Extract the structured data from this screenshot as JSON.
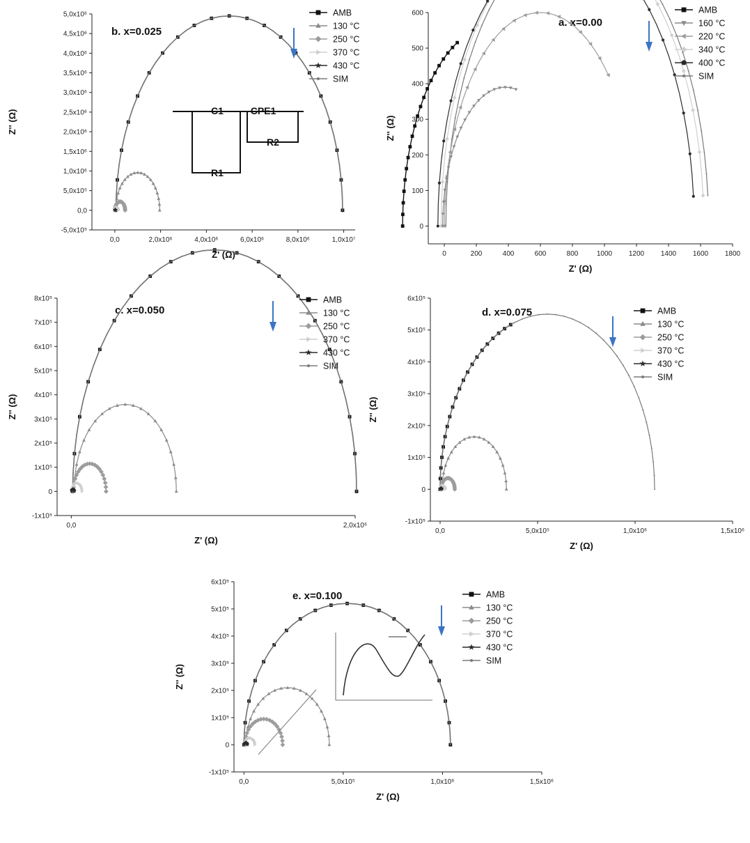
{
  "colors": {
    "arrow": "#3a74c4",
    "axis": "#222222"
  },
  "chart_data": [
    {
      "panel": "b",
      "type": "scatter",
      "title": "b. x=0.025",
      "xlabel": "Z' (Ω)",
      "ylabel": "Z'' (Ω)",
      "xlim": [
        -1000000,
        10500000
      ],
      "ylim": [
        -500000,
        5000000
      ],
      "x_ticks": [
        {
          "v": 0,
          "t": "0,0"
        },
        {
          "v": 2000000,
          "t": "2,0x10⁶"
        },
        {
          "v": 4000000,
          "t": "4,0x10⁶"
        },
        {
          "v": 6000000,
          "t": "6,0x10⁶"
        },
        {
          "v": 8000000,
          "t": "8,0x10⁶"
        },
        {
          "v": 10000000,
          "t": "1,0x10⁷"
        }
      ],
      "y_ticks": [
        {
          "v": -500000,
          "t": "-5,0x10⁵"
        },
        {
          "v": 0,
          "t": "0,0"
        },
        {
          "v": 500000,
          "t": "5,0x10⁵"
        },
        {
          "v": 1000000,
          "t": "1,0x10⁶"
        },
        {
          "v": 1500000,
          "t": "1,5x10⁶"
        },
        {
          "v": 2000000,
          "t": "2,0x10⁶"
        },
        {
          "v": 2500000,
          "t": "2,5x10⁶"
        },
        {
          "v": 3000000,
          "t": "3,0x10⁶"
        },
        {
          "v": 3500000,
          "t": "3,5x10⁶"
        },
        {
          "v": 4000000,
          "t": "4,0x10⁶"
        },
        {
          "v": 4500000,
          "t": "4,5x10⁶"
        },
        {
          "v": 5000000,
          "t": "5,0x10⁶"
        }
      ],
      "legend": [
        "AMB",
        "130 °C",
        "250 °C",
        "370 °C",
        "430 °C",
        "SIM"
      ],
      "series": [
        {
          "name": "AMB",
          "center": 5000000,
          "radius": 4950000,
          "end_angle": 180,
          "marker": "square"
        },
        {
          "name": "130 °C",
          "center": 1000000,
          "radius": 960000,
          "end_angle": 180,
          "marker": "triangle"
        },
        {
          "name": "250 °C",
          "center": 230000,
          "radius": 220000,
          "end_angle": 180,
          "marker": "diamond"
        },
        {
          "name": "370 °C",
          "center": 80000,
          "radius": 75000,
          "end_angle": 180,
          "marker": "tri-right"
        },
        {
          "name": "430 °C",
          "center": 20000,
          "radius": 18000,
          "end_angle": 180,
          "marker": "star"
        },
        {
          "name": "SIM",
          "center": 5000000,
          "radius": 4950000,
          "end_angle": 180,
          "marker": "dot"
        }
      ],
      "circuit": {
        "c1": "C1",
        "r1": "R1",
        "cpe1": "CPE1",
        "r2": "R2"
      }
    },
    {
      "panel": "a",
      "type": "scatter",
      "title": "a. x=0.00",
      "xlabel": "Z' (Ω)",
      "ylabel": "Z'' (Ω)",
      "xlim": [
        -100,
        1800
      ],
      "ylim": [
        -50,
        600
      ],
      "x_ticks": [
        {
          "v": 0,
          "t": "0"
        },
        {
          "v": 200,
          "t": "200"
        },
        {
          "v": 400,
          "t": "400"
        },
        {
          "v": 600,
          "t": "600"
        },
        {
          "v": 800,
          "t": "800"
        },
        {
          "v": 1000,
          "t": "1000"
        },
        {
          "v": 1200,
          "t": "1200"
        },
        {
          "v": 1400,
          "t": "1400"
        },
        {
          "v": 1600,
          "t": "1600"
        },
        {
          "v": 1800,
          "t": "1800"
        }
      ],
      "y_ticks": [
        {
          "v": 0,
          "t": "0"
        },
        {
          "v": 100,
          "t": "100"
        },
        {
          "v": 200,
          "t": "200"
        },
        {
          "v": 300,
          "t": "300"
        },
        {
          "v": 400,
          "t": "400"
        },
        {
          "v": 500,
          "t": "500"
        },
        {
          "v": 600,
          "t": "600"
        }
      ],
      "legend": [
        "AMB",
        "160 °C",
        "220 °C",
        "340 °C",
        "400 °C",
        "SIM"
      ],
      "series": [
        {
          "name": "AMB",
          "center": 300,
          "radius": 560,
          "end_angle": 67,
          "marker": "square"
        },
        {
          "name": "160 °C",
          "center": 380,
          "radius": 390,
          "end_angle": 100,
          "marker": "tri-down"
        },
        {
          "name": "220 °C",
          "center": 600,
          "radius": 600,
          "end_angle": 135,
          "marker": "tri-left"
        },
        {
          "name": "340 °C",
          "center": 800,
          "radius": 820,
          "end_angle": 174,
          "marker": "diamond"
        },
        {
          "name": "400 °C",
          "center": 760,
          "radius": 800,
          "end_angle": 174,
          "marker": "pentagon"
        },
        {
          "name": "SIM",
          "center": 830,
          "radius": 820,
          "end_angle": 174,
          "marker": "dot"
        }
      ]
    },
    {
      "panel": "c",
      "type": "scatter",
      "title": "c. x=0.050",
      "xlabel": "Z' (Ω)",
      "ylabel": "Z'' (Ω)",
      "xlim": [
        -100000,
        2000000
      ],
      "ylim": [
        -100000,
        800000
      ],
      "x_ticks": [
        {
          "v": 0,
          "t": "0,0"
        },
        {
          "v": 2000000,
          "t": "2,0x10⁶"
        }
      ],
      "y_ticks": [
        {
          "v": -100000,
          "t": "-1x10⁵"
        },
        {
          "v": 0,
          "t": "0"
        },
        {
          "v": 100000,
          "t": "1x10⁵"
        },
        {
          "v": 200000,
          "t": "2x10⁵"
        },
        {
          "v": 300000,
          "t": "3x10⁵"
        },
        {
          "v": 400000,
          "t": "4x10⁵"
        },
        {
          "v": 500000,
          "t": "5x10⁵"
        },
        {
          "v": 600000,
          "t": "6x10⁵"
        },
        {
          "v": 700000,
          "t": "7x10⁵"
        },
        {
          "v": 800000,
          "t": "8x10⁵"
        }
      ],
      "legend": [
        "AMB",
        "130 °C",
        "250 °C",
        "370 °C",
        "430 °C",
        "SIM"
      ],
      "series": [
        {
          "name": "AMB",
          "center": 1010000,
          "radius": 1000000,
          "end_angle": 180,
          "marker": "square"
        },
        {
          "name": "130 °C",
          "center": 380000,
          "radius": 360000,
          "end_angle": 180,
          "marker": "triangle"
        },
        {
          "name": "250 °C",
          "center": 130000,
          "radius": 115000,
          "end_angle": 180,
          "marker": "diamond"
        },
        {
          "name": "370 °C",
          "center": 40000,
          "radius": 35000,
          "end_angle": 180,
          "marker": "tri-right"
        },
        {
          "name": "430 °C",
          "center": 12000,
          "radius": 10000,
          "end_angle": 180,
          "marker": "star"
        },
        {
          "name": "SIM",
          "center": 1010000,
          "radius": 1000000,
          "end_angle": 180,
          "marker": "dot"
        }
      ]
    },
    {
      "panel": "d",
      "type": "scatter",
      "title": "d. x=0.075",
      "xlabel": "Z' (Ω)",
      "ylabel": "Z'' (Ω)",
      "xlim": [
        -50000,
        1500000
      ],
      "ylim": [
        -100000,
        600000
      ],
      "x_ticks": [
        {
          "v": 0,
          "t": "0,0"
        },
        {
          "v": 500000,
          "t": "5,0x10⁵"
        },
        {
          "v": 1000000,
          "t": "1,0x10⁶"
        },
        {
          "v": 1500000,
          "t": "1,5x10⁶"
        }
      ],
      "y_ticks": [
        {
          "v": -100000,
          "t": "-1x10⁵"
        },
        {
          "v": 0,
          "t": "0"
        },
        {
          "v": 100000,
          "t": "1x10⁵"
        },
        {
          "v": 200000,
          "t": "2x10⁵"
        },
        {
          "v": 300000,
          "t": "3x10⁵"
        },
        {
          "v": 400000,
          "t": "4x10⁵"
        },
        {
          "v": 500000,
          "t": "5x10⁵"
        },
        {
          "v": 600000,
          "t": "6x10⁵"
        }
      ],
      "legend": [
        "AMB",
        "130 °C",
        "250 °C",
        "370 °C",
        "430 °C",
        "SIM"
      ],
      "series": [
        {
          "name": "AMB",
          "center": 550000,
          "radius": 550000,
          "end_angle": 70,
          "marker": "square"
        },
        {
          "name": "130 °C",
          "center": 175000,
          "radius": 165000,
          "end_angle": 180,
          "marker": "triangle"
        },
        {
          "name": "250 °C",
          "center": 40000,
          "radius": 35000,
          "end_angle": 180,
          "marker": "diamond"
        },
        {
          "name": "370 °C",
          "center": 15000,
          "radius": 12000,
          "end_angle": 180,
          "marker": "tri-right"
        },
        {
          "name": "430 °C",
          "center": 5000,
          "radius": 4000,
          "end_angle": 180,
          "marker": "star"
        },
        {
          "name": "SIM",
          "center": 550000,
          "radius": 550000,
          "end_angle": 180,
          "marker": "dot"
        }
      ]
    },
    {
      "panel": "e",
      "type": "scatter",
      "title": "e. x=0.100",
      "xlabel": "Z' (Ω)",
      "ylabel": "Z'' (Ω)",
      "xlim": [
        -50000,
        1500000
      ],
      "ylim": [
        -100000,
        600000
      ],
      "x_ticks": [
        {
          "v": 0,
          "t": "0,0"
        },
        {
          "v": 500000,
          "t": "5,0x10⁵"
        },
        {
          "v": 1000000,
          "t": "1,0x10⁶"
        },
        {
          "v": 1500000,
          "t": "1,5x10⁶"
        }
      ],
      "y_ticks": [
        {
          "v": -100000,
          "t": "-1x10⁵"
        },
        {
          "v": 0,
          "t": "0"
        },
        {
          "v": 100000,
          "t": "1x10⁵"
        },
        {
          "v": 200000,
          "t": "2x10⁵"
        },
        {
          "v": 300000,
          "t": "3x10⁵"
        },
        {
          "v": 400000,
          "t": "4x10⁵"
        },
        {
          "v": 500000,
          "t": "5x10⁵"
        },
        {
          "v": 600000,
          "t": "6x10⁵"
        }
      ],
      "legend": [
        "AMB",
        "130 °C",
        "250 °C",
        "370 °C",
        "430 °C",
        "SIM"
      ],
      "series": [
        {
          "name": "AMB",
          "center": 520000,
          "radius": 520000,
          "end_angle": 180,
          "marker": "square"
        },
        {
          "name": "130 °C",
          "center": 220000,
          "radius": 210000,
          "end_angle": 180,
          "marker": "triangle"
        },
        {
          "name": "250 °C",
          "center": 100000,
          "radius": 95000,
          "end_angle": 180,
          "marker": "diamond"
        },
        {
          "name": "370 °C",
          "center": 30000,
          "radius": 25000,
          "end_angle": 180,
          "marker": "tri-right"
        },
        {
          "name": "430 °C",
          "center": 10000,
          "radius": 8000,
          "end_angle": 180,
          "marker": "star"
        },
        {
          "name": "SIM",
          "center": 520000,
          "radius": 520000,
          "end_angle": 180,
          "marker": "dot"
        }
      ],
      "inset": true
    }
  ]
}
